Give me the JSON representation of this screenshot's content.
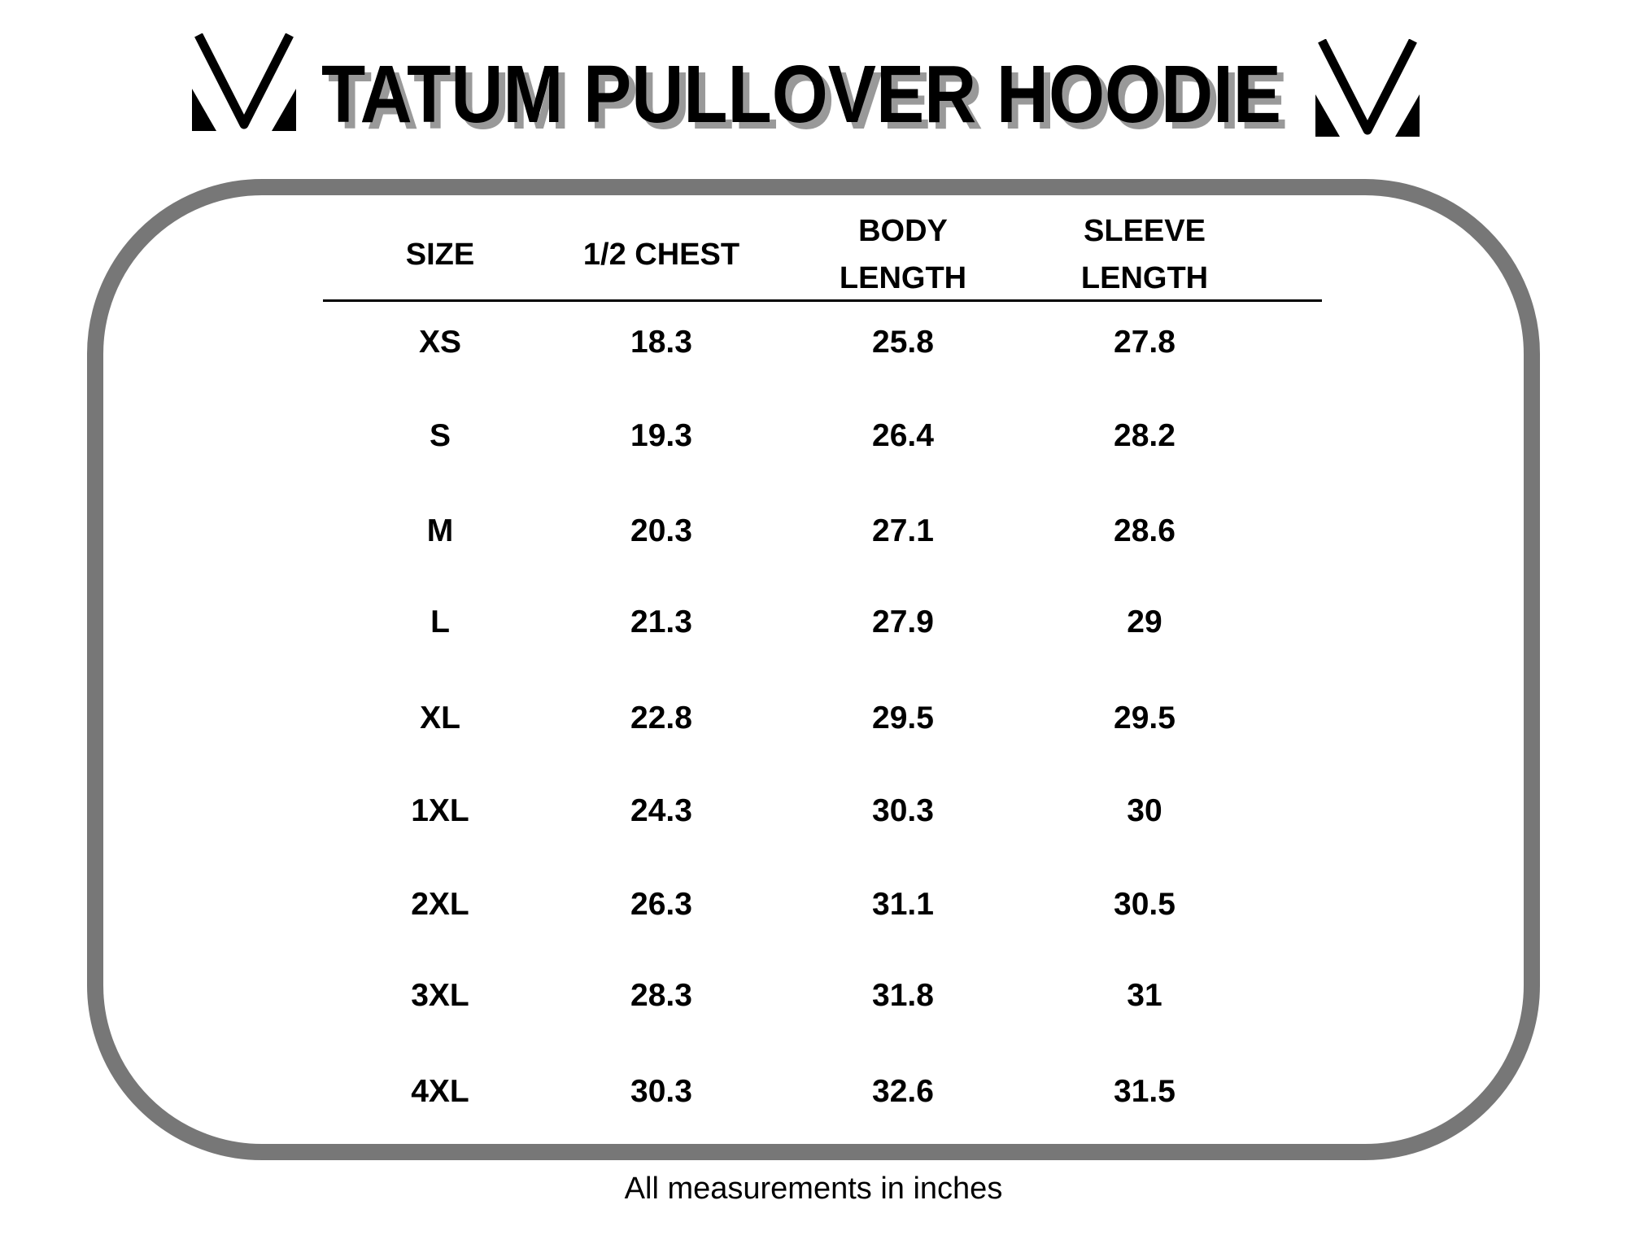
{
  "title": "TATUM PULLOVER HOODIE",
  "headers": [
    "SIZE",
    "1/2 CHEST",
    "BODY\nLENGTH",
    "SLEEVE\nLENGTH"
  ],
  "header_lines": [
    [
      "SIZE"
    ],
    [
      "1/2 CHEST"
    ],
    [
      "BODY",
      "LENGTH"
    ],
    [
      "SLEEVE",
      "LENGTH"
    ]
  ],
  "rows": [
    [
      "XS",
      "18.3",
      "25.8",
      "27.8"
    ],
    [
      "S",
      "19.3",
      "26.4",
      "28.2"
    ],
    [
      "M",
      "20.3",
      "27.1",
      "28.6"
    ],
    [
      "L",
      "21.3",
      "27.9",
      "29"
    ],
    [
      "XL",
      "22.8",
      "29.5",
      "29.5"
    ],
    [
      "1XL",
      "24.3",
      "30.3",
      "30"
    ],
    [
      "2XL",
      "26.3",
      "31.1",
      "30.5"
    ],
    [
      "3XL",
      "28.3",
      "31.8",
      "31"
    ],
    [
      "4XL",
      "30.3",
      "32.6",
      "31.5"
    ]
  ],
  "footer": "All measurements in inches",
  "colors": {
    "frame": "#777777",
    "title_shadow": "#999999",
    "text": "#000000"
  }
}
